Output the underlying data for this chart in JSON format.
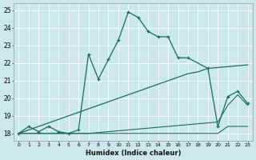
{
  "xlabel": "Humidex (Indice chaleur)",
  "bg_color": "#cce8ec",
  "line_color": "#1a6b60",
  "xlim": [
    -0.5,
    23.5
  ],
  "ylim": [
    17.6,
    25.4
  ],
  "xtick_labels": [
    "0",
    "1",
    "2",
    "3",
    "4",
    "5",
    "6",
    "7",
    "8",
    "9",
    "10",
    "11",
    "12",
    "13",
    "14",
    "15",
    "16",
    "17",
    "18",
    "19",
    "20",
    "21",
    "22",
    "23"
  ],
  "xtick_vals": [
    0,
    1,
    2,
    3,
    4,
    5,
    6,
    7,
    8,
    9,
    10,
    11,
    12,
    13,
    14,
    15,
    16,
    17,
    18,
    19,
    20,
    21,
    22,
    23
  ],
  "ytick_vals": [
    18,
    19,
    20,
    21,
    22,
    23,
    24,
    25
  ],
  "line1_x": [
    0,
    1,
    2,
    3,
    4,
    5,
    6,
    7,
    8,
    9,
    10,
    11,
    12,
    13,
    14,
    15,
    16,
    17,
    19,
    20,
    21,
    22,
    23
  ],
  "line1_y": [
    18.0,
    18.4,
    18.1,
    18.4,
    18.1,
    18.0,
    18.2,
    22.5,
    21.1,
    22.2,
    23.3,
    24.9,
    24.6,
    23.8,
    23.5,
    23.5,
    22.3,
    22.3,
    21.7,
    18.4,
    20.1,
    20.4,
    19.7
  ],
  "line2_x": [
    0,
    1,
    2,
    3,
    4,
    5,
    6,
    7,
    8,
    9,
    10,
    11,
    12,
    13,
    14,
    15,
    16,
    17,
    18,
    19,
    20,
    21,
    22,
    23
  ],
  "line2_y": [
    18.0,
    18.2,
    18.4,
    18.6,
    18.8,
    19.0,
    19.2,
    19.4,
    19.6,
    19.8,
    20.0,
    20.2,
    20.4,
    20.6,
    20.8,
    21.0,
    21.2,
    21.4,
    21.5,
    21.7,
    21.75,
    21.8,
    21.85,
    21.9
  ],
  "line3_x": [
    0,
    1,
    2,
    3,
    4,
    5,
    6,
    7,
    8,
    9,
    10,
    11,
    12,
    13,
    14,
    15,
    16,
    17,
    18,
    19,
    20,
    21,
    22,
    23
  ],
  "line3_y": [
    18.0,
    18.0,
    18.0,
    18.0,
    18.0,
    18.0,
    18.0,
    18.0,
    18.05,
    18.1,
    18.15,
    18.2,
    18.25,
    18.3,
    18.35,
    18.4,
    18.45,
    18.5,
    18.55,
    18.6,
    18.65,
    19.6,
    20.2,
    19.6
  ],
  "line4_x": [
    0,
    1,
    2,
    3,
    4,
    5,
    6,
    7,
    8,
    9,
    10,
    11,
    12,
    13,
    14,
    15,
    16,
    17,
    18,
    19,
    20,
    21,
    22,
    23
  ],
  "line4_y": [
    18.0,
    18.0,
    18.0,
    18.0,
    18.0,
    18.0,
    18.0,
    18.0,
    18.0,
    18.0,
    18.0,
    18.0,
    18.0,
    18.0,
    18.0,
    18.0,
    18.0,
    18.0,
    18.0,
    18.0,
    18.0,
    18.4,
    18.4,
    18.4
  ]
}
